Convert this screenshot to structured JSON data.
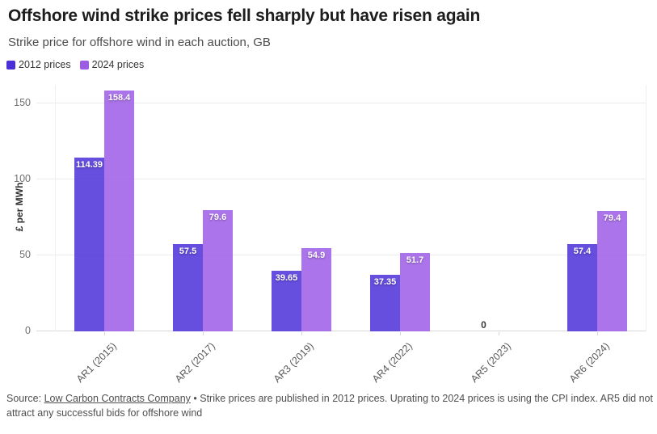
{
  "header": {
    "title": "Offshore wind strike prices fell sharply but have risen again",
    "subtitle": "Strike price for offshore wind in each auction, GB"
  },
  "legend": [
    {
      "label": "2012 prices",
      "color": "#4b2fd9"
    },
    {
      "label": "2024 prices",
      "color": "#9d5ce6"
    }
  ],
  "chart_data": {
    "type": "bar",
    "categories": [
      "AR1 (2015)",
      "AR2 (2017)",
      "AR3 (2019)",
      "AR4 (2022)",
      "AR5 (2023)",
      "AR6 (2024)"
    ],
    "series": [
      {
        "name": "2012 prices",
        "color": "#4b2fd9",
        "values": [
          114.39,
          57.5,
          39.65,
          37.35,
          0,
          57.4
        ]
      },
      {
        "name": "2024 prices",
        "color": "#9d5ce6",
        "values": [
          158.4,
          79.6,
          54.9,
          51.7,
          null,
          79.4
        ]
      }
    ],
    "title": "Offshore wind strike prices fell sharply but have risen again",
    "xlabel": "",
    "ylabel": "£ per MWh",
    "yticks": [
      0,
      50,
      100,
      150
    ],
    "ylim": [
      0,
      162
    ],
    "grid": "horizontal",
    "legend_position": "top-left",
    "bar_opacity": 0.85
  },
  "footer": {
    "source_prefix": "Source: ",
    "source_link": "Low Carbon Contracts Company",
    "separator": " • ",
    "note": "Strike prices are published in 2012 prices. Uprating to 2024 prices is using the CPI index. AR5 did not attract any successful bids for offshore wind"
  }
}
